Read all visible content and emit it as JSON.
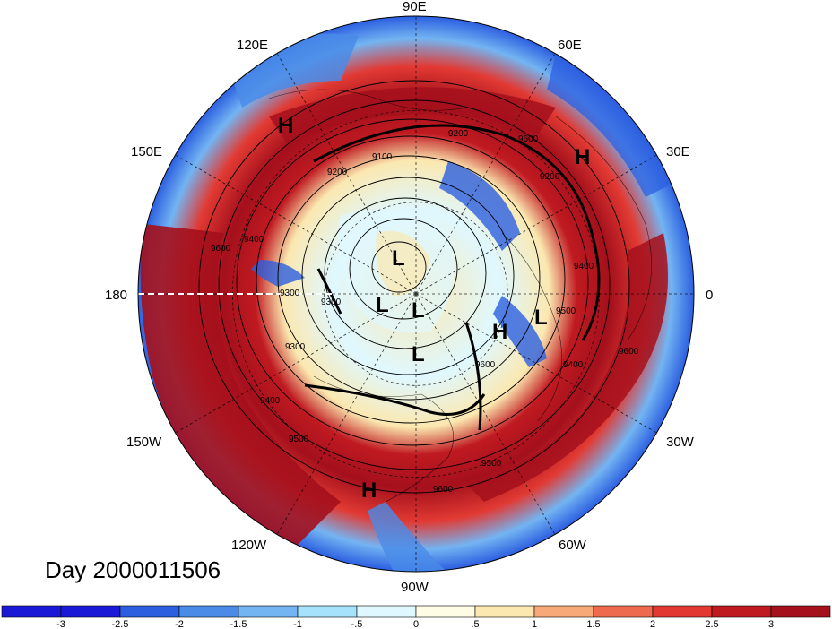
{
  "title": "Day 2000011506",
  "projection": "polar stereographic (north pole)",
  "longitude_labels": [
    {
      "text": "90E",
      "lon": 90
    },
    {
      "text": "60E",
      "lon": 60
    },
    {
      "text": "30E",
      "lon": 30
    },
    {
      "text": "0",
      "lon": 0
    },
    {
      "text": "30W",
      "lon": -30
    },
    {
      "text": "60W",
      "lon": -60
    },
    {
      "text": "90W",
      "lon": -90
    },
    {
      "text": "120W",
      "lon": -120
    },
    {
      "text": "150W",
      "lon": -150
    },
    {
      "text": "180",
      "lon": 180
    },
    {
      "text": "150E",
      "lon": 150
    },
    {
      "text": "120E",
      "lon": 120
    }
  ],
  "pressure_centers": [
    {
      "label": "H",
      "name": "high-east-asia"
    },
    {
      "label": "H",
      "name": "high-europe"
    },
    {
      "label": "H",
      "name": "high-north-atlantic"
    },
    {
      "label": "H",
      "name": "high-central-america"
    },
    {
      "label": "L",
      "name": "low-arctic-1"
    },
    {
      "label": "L",
      "name": "low-arctic-2"
    },
    {
      "label": "L",
      "name": "low-arctic-3"
    },
    {
      "label": "L",
      "name": "low-arctic-4"
    },
    {
      "label": "L",
      "name": "low-scandinavia"
    }
  ],
  "contour_labels": [
    "9100",
    "9200",
    "9300",
    "9300",
    "9400",
    "9400",
    "9400",
    "9500",
    "9500",
    "9600",
    "9600",
    "9600",
    "9600",
    "9200",
    "9200",
    "9300",
    "9400",
    "9500",
    "9600"
  ],
  "colorbar": {
    "ticks": [
      "-3",
      "-2.5",
      "-2",
      "-1.5",
      "-1",
      "-.5",
      "0",
      ".5",
      "1",
      "1.5",
      "2",
      "2.5",
      "3"
    ],
    "colors": [
      "#1a1ad6",
      "#2c5fe0",
      "#4a8be8",
      "#73b4f2",
      "#a6e2fb",
      "#dff8ff",
      "#fffce6",
      "#fbe8b0",
      "#f7aa78",
      "#ee6a4e",
      "#e23a33",
      "#c01a21",
      "#a4101c"
    ]
  }
}
